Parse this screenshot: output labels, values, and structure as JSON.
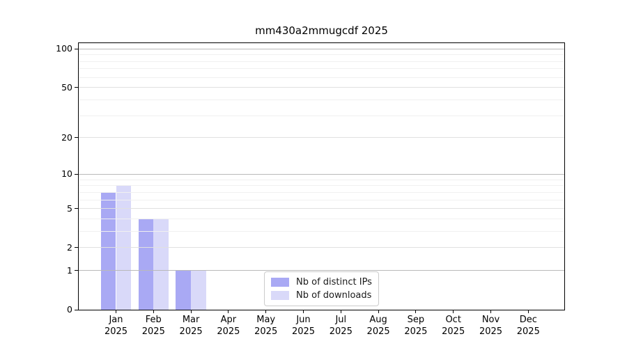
{
  "title": "mm430a2mmugcdf 2025",
  "chart_data": {
    "type": "bar",
    "title": "mm430a2mmugcdf 2025",
    "x_year": "2025",
    "categories": [
      "Jan",
      "Feb",
      "Mar",
      "Apr",
      "May",
      "Jun",
      "Jul",
      "Aug",
      "Sep",
      "Oct",
      "Nov",
      "Dec"
    ],
    "series": [
      {
        "name": "Nb of distinct IPs",
        "color": "#a9a9f4",
        "values": [
          7,
          4,
          1,
          0,
          0,
          0,
          0,
          0,
          0,
          0,
          0,
          0
        ]
      },
      {
        "name": "Nb of downloads",
        "color": "#d9d9f9",
        "values": [
          8,
          4,
          1,
          0,
          0,
          0,
          0,
          0,
          0,
          0,
          0,
          0
        ]
      }
    ],
    "xlabel": "",
    "ylabel": "",
    "yscale": "log1p",
    "ylim": [
      0,
      111
    ],
    "ytick_major": [
      0,
      1,
      2,
      5,
      10,
      20,
      50,
      100
    ],
    "ytick_minor": [
      3,
      4,
      6,
      7,
      8,
      9,
      30,
      40,
      60,
      70,
      80,
      90
    ],
    "grid": true,
    "grid_over_bars": true,
    "legend_position": "lower center",
    "colors": {
      "spine": "#000000",
      "grid_decade": "#b9b9b9",
      "grid_major": "#e0e0e0",
      "grid_minor": "#f0f0f0",
      "legend_border": "#cbcbcb"
    }
  }
}
